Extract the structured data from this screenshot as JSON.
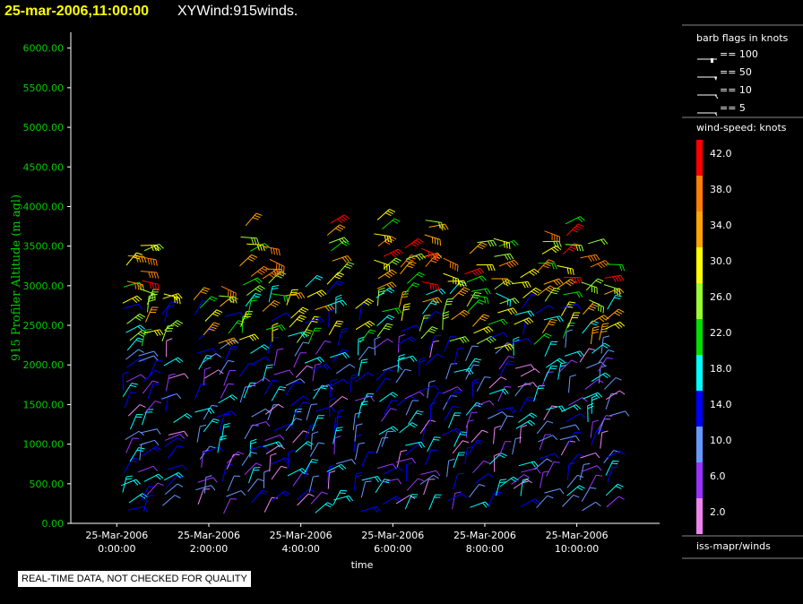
{
  "header": {
    "timestamp": "25-mar-2006,11:00:00",
    "product": "XYWind:915winds."
  },
  "footer": {
    "notice": "REAL-TIME DATA, NOT CHECKED FOR QUALITY"
  },
  "legend": {
    "barb_title": "barb flags in knots",
    "barbs": [
      {
        "label": "== 100",
        "kind": "flag100"
      },
      {
        "label": "== 50",
        "kind": "flag50"
      },
      {
        "label": "== 10",
        "kind": "barb10"
      },
      {
        "label": "== 5",
        "kind": "barb5"
      }
    ],
    "speed_title": "wind-speed: knots",
    "speed_bins": [
      {
        "label": "42.0",
        "color": "#ff0000"
      },
      {
        "label": "38.0",
        "color": "#ff7f00"
      },
      {
        "label": "34.0",
        "color": "#ffa500"
      },
      {
        "label": "30.0",
        "color": "#ffff00"
      },
      {
        "label": "26.0",
        "color": "#99ff33"
      },
      {
        "label": "22.0",
        "color": "#00e000"
      },
      {
        "label": "18.0",
        "color": "#00ffff"
      },
      {
        "label": "14.0",
        "color": "#0000ff"
      },
      {
        "label": "10.0",
        "color": "#6699ff"
      },
      {
        "label": "6.0",
        "color": "#9933ff"
      },
      {
        "label": "2.0",
        "color": "#ee82ee"
      }
    ],
    "source": "iss-mapr/winds"
  },
  "chart_data": {
    "type": "scatter",
    "ylabel": "915 Profiler Altitude (m agl)",
    "xlabel": "time",
    "ylim": [
      0,
      6200
    ],
    "yticks": [
      "0.00",
      "500.00",
      "1000.00",
      "1500.00",
      "2000.00",
      "2500.00",
      "3000.00",
      "3500.00",
      "4000.00",
      "4500.00",
      "5000.00",
      "5500.00",
      "6000.00"
    ],
    "xticks": [
      {
        "date": "25-Mar-2006",
        "time": "0:00:00"
      },
      {
        "date": "25-Mar-2006",
        "time": "2:00:00"
      },
      {
        "date": "25-Mar-2006",
        "time": "4:00:00"
      },
      {
        "date": "25-Mar-2006",
        "time": "6:00:00"
      },
      {
        "date": "25-Mar-2006",
        "time": "8:00:00"
      },
      {
        "date": "25-Mar-2006",
        "time": "10:00:00"
      }
    ],
    "xlim_hours": [
      -1,
      11.8
    ],
    "profile_times_hours": [
      0.2,
      0.6,
      1.1,
      1.8,
      2.3,
      2.8,
      3.3,
      3.8,
      4.2,
      4.7,
      5.2,
      5.7,
      6.2,
      6.7,
      7.2,
      7.7,
      8.2,
      8.7,
      9.2,
      9.7,
      10.2,
      10.6
    ],
    "color_field": "wind speed (knots)",
    "grid": false
  }
}
